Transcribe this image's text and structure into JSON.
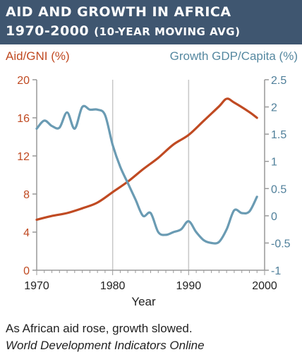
{
  "header": {
    "title_line1": "AID AND GROWTH IN AFRICA",
    "title_line2_main": "1970-2000",
    "title_line2_sub": "(10-YEAR MOVING AVG)"
  },
  "caption": "As African aid rose, growth slowed.",
  "source": "World Development Indicators Online",
  "colors": {
    "header_bg": "#3f5670",
    "aid": "#c04a22",
    "growth": "#6a9bb3",
    "grid": "#c8c8c8"
  },
  "chart_data": {
    "type": "line",
    "xlabel": "Year",
    "ylabel_left": "Aid/GNI (%)",
    "ylabel_right": "Growth GDP/Capita (%)",
    "xlim": [
      1970,
      2000
    ],
    "ylim_left": [
      0,
      20
    ],
    "ylim_right": [
      -1,
      2.5
    ],
    "x_ticks": [
      1970,
      1980,
      1990,
      2000
    ],
    "y_ticks_left": [
      0,
      4,
      8,
      12,
      16,
      20
    ],
    "y_ticks_right": [
      "-1",
      "-0.5",
      "0",
      "0.5",
      "1",
      "1.5",
      "2",
      "2.5"
    ],
    "grid": "vertical at x ticks",
    "series": [
      {
        "name": "Aid/GNI (%)",
        "axis": "left",
        "points": [
          [
            1970,
            5.3
          ],
          [
            1972,
            5.7
          ],
          [
            1974,
            6.0
          ],
          [
            1976,
            6.5
          ],
          [
            1978,
            7.1
          ],
          [
            1980,
            8.2
          ],
          [
            1982,
            9.3
          ],
          [
            1984,
            10.6
          ],
          [
            1986,
            11.8
          ],
          [
            1988,
            13.2
          ],
          [
            1990,
            14.2
          ],
          [
            1992,
            15.7
          ],
          [
            1994,
            17.2
          ],
          [
            1995,
            18.0
          ],
          [
            1996,
            17.6
          ],
          [
            1998,
            16.6
          ],
          [
            1999,
            16.0
          ]
        ]
      },
      {
        "name": "Growth GDP/Capita (%)",
        "axis": "right",
        "points": [
          [
            1970,
            1.6
          ],
          [
            1971,
            1.75
          ],
          [
            1972,
            1.65
          ],
          [
            1973,
            1.62
          ],
          [
            1974,
            1.9
          ],
          [
            1975,
            1.6
          ],
          [
            1976,
            2.0
          ],
          [
            1977,
            1.95
          ],
          [
            1978,
            1.95
          ],
          [
            1979,
            1.85
          ],
          [
            1980,
            1.3
          ],
          [
            1981,
            0.9
          ],
          [
            1982,
            0.6
          ],
          [
            1983,
            0.3
          ],
          [
            1984,
            0.0
          ],
          [
            1985,
            0.05
          ],
          [
            1986,
            -0.3
          ],
          [
            1987,
            -0.35
          ],
          [
            1988,
            -0.3
          ],
          [
            1989,
            -0.25
          ],
          [
            1990,
            -0.1
          ],
          [
            1991,
            -0.3
          ],
          [
            1992,
            -0.45
          ],
          [
            1993,
            -0.5
          ],
          [
            1994,
            -0.48
          ],
          [
            1995,
            -0.25
          ],
          [
            1996,
            0.1
          ],
          [
            1997,
            0.05
          ],
          [
            1998,
            0.08
          ],
          [
            1999,
            0.35
          ]
        ]
      }
    ]
  }
}
